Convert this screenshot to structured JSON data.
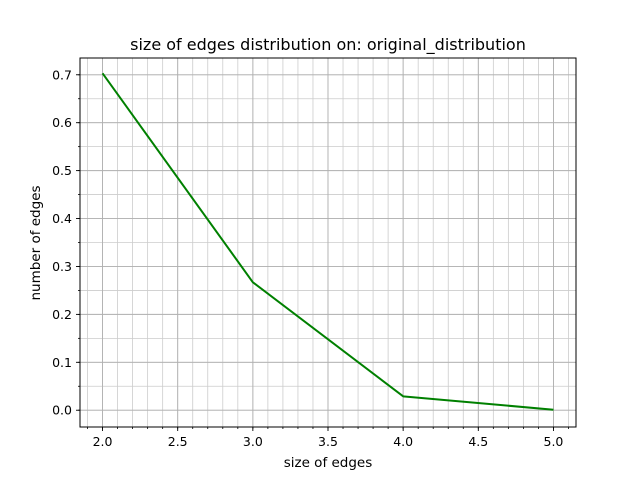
{
  "chart_data": {
    "type": "line",
    "title": "size of edges distribution on: original_distribution",
    "xlabel": "size of edges",
    "ylabel": "number of edges",
    "xlim": [
      1.85,
      5.15
    ],
    "ylim": [
      -0.035,
      0.735
    ],
    "grid": true,
    "minor_grid": true,
    "x_ticks": [
      2.0,
      2.5,
      3.0,
      3.5,
      4.0,
      4.5,
      5.0
    ],
    "x_tick_labels": [
      "2.0",
      "2.5",
      "3.0",
      "3.5",
      "4.0",
      "4.5",
      "5.0"
    ],
    "y_ticks": [
      0.0,
      0.1,
      0.2,
      0.3,
      0.4,
      0.5,
      0.6,
      0.7
    ],
    "y_tick_labels": [
      "0.0",
      "0.1",
      "0.2",
      "0.3",
      "0.4",
      "0.5",
      "0.6",
      "0.7"
    ],
    "x_minor_step": 0.1,
    "y_minor_step": 0.05,
    "series": [
      {
        "name": "original_distribution",
        "color": "#008000",
        "x": [
          2,
          3,
          4,
          5
        ],
        "y": [
          0.703,
          0.267,
          0.029,
          0.001
        ]
      }
    ]
  }
}
